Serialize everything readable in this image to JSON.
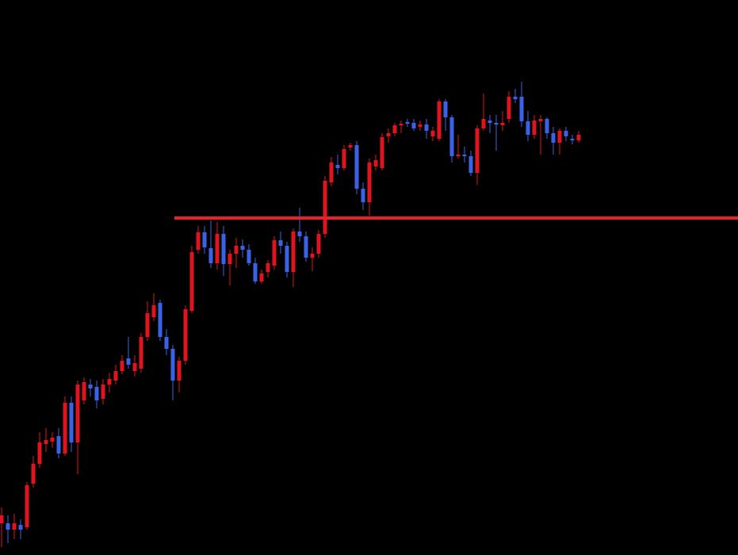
{
  "chart_data": {
    "type": "candlestick",
    "up_color": "#e0141e",
    "down_color": "#3a62e8",
    "ylim": [
      0,
      700
    ],
    "open": [
      40,
      40,
      32,
      38,
      35,
      90,
      115,
      140,
      143,
      150,
      128,
      192,
      142,
      195,
      215,
      212,
      197,
      215,
      220,
      232,
      248,
      232,
      235,
      275,
      300,
      318,
      275,
      260,
      220,
      245,
      308,
      385,
      407,
      387,
      368,
      405,
      367,
      380,
      390,
      385,
      368,
      345,
      357,
      365,
      397,
      390,
      357,
      408,
      402,
      375,
      380,
      405,
      470,
      492,
      488,
      514,
      517,
      462,
      445,
      490,
      488,
      528,
      532,
      542,
      546,
      545,
      540,
      543,
      528,
      525,
      572,
      552,
      503,
      505,
      503,
      482,
      538,
      548,
      545,
      542,
      550,
      578,
      578,
      547,
      530,
      547,
      550,
      532,
      520,
      535,
      525,
      523
    ],
    "high": [
      60,
      50,
      52,
      45,
      92,
      125,
      155,
      160,
      155,
      160,
      200,
      200,
      220,
      224,
      222,
      220,
      222,
      230,
      240,
      252,
      275,
      252,
      280,
      320,
      330,
      322,
      285,
      265,
      250,
      315,
      390,
      415,
      415,
      422,
      420,
      415,
      385,
      400,
      398,
      392,
      375,
      360,
      372,
      402,
      408,
      395,
      412,
      438,
      408,
      388,
      410,
      478,
      502,
      505,
      517,
      520,
      522,
      470,
      500,
      505,
      532,
      538,
      545,
      548,
      550,
      550,
      548,
      550,
      540,
      575,
      575,
      555,
      530,
      515,
      510,
      542,
      582,
      555,
      555,
      560,
      585,
      588,
      597,
      560,
      555,
      555,
      552,
      540,
      538,
      540,
      530,
      535
    ],
    "low": [
      10,
      15,
      20,
      20,
      32,
      85,
      110,
      130,
      135,
      122,
      125,
      130,
      102,
      190,
      200,
      185,
      190,
      205,
      215,
      228,
      235,
      225,
      230,
      270,
      295,
      270,
      252,
      195,
      205,
      240,
      305,
      380,
      380,
      362,
      360,
      352,
      340,
      362,
      375,
      365,
      342,
      342,
      350,
      360,
      380,
      350,
      338,
      395,
      370,
      358,
      375,
      400,
      465,
      480,
      485,
      510,
      455,
      435,
      428,
      485,
      485,
      520,
      528,
      532,
      540,
      535,
      535,
      525,
      522,
      522,
      535,
      495,
      500,
      495,
      478,
      467,
      535,
      532,
      510,
      535,
      545,
      570,
      540,
      522,
      525,
      505,
      525,
      505,
      505,
      522,
      518,
      520
    ],
    "close": [
      50,
      32,
      40,
      32,
      88,
      115,
      142,
      145,
      148,
      128,
      192,
      142,
      215,
      218,
      210,
      195,
      215,
      222,
      232,
      245,
      240,
      242,
      275,
      305,
      315,
      275,
      260,
      220,
      245,
      310,
      382,
      407,
      388,
      368,
      405,
      367,
      380,
      390,
      385,
      368,
      345,
      355,
      368,
      397,
      390,
      357,
      408,
      402,
      375,
      380,
      405,
      472,
      495,
      488,
      512,
      517,
      462,
      445,
      495,
      498,
      527,
      532,
      542,
      544,
      544,
      538,
      543,
      535,
      535,
      572,
      552,
      503,
      505,
      503,
      482,
      538,
      550,
      545,
      543,
      545,
      578,
      575,
      547,
      530,
      548,
      550,
      532,
      520,
      535,
      528,
      523,
      530
    ],
    "hline": {
      "value": 425,
      "color": "#e8202a"
    }
  }
}
